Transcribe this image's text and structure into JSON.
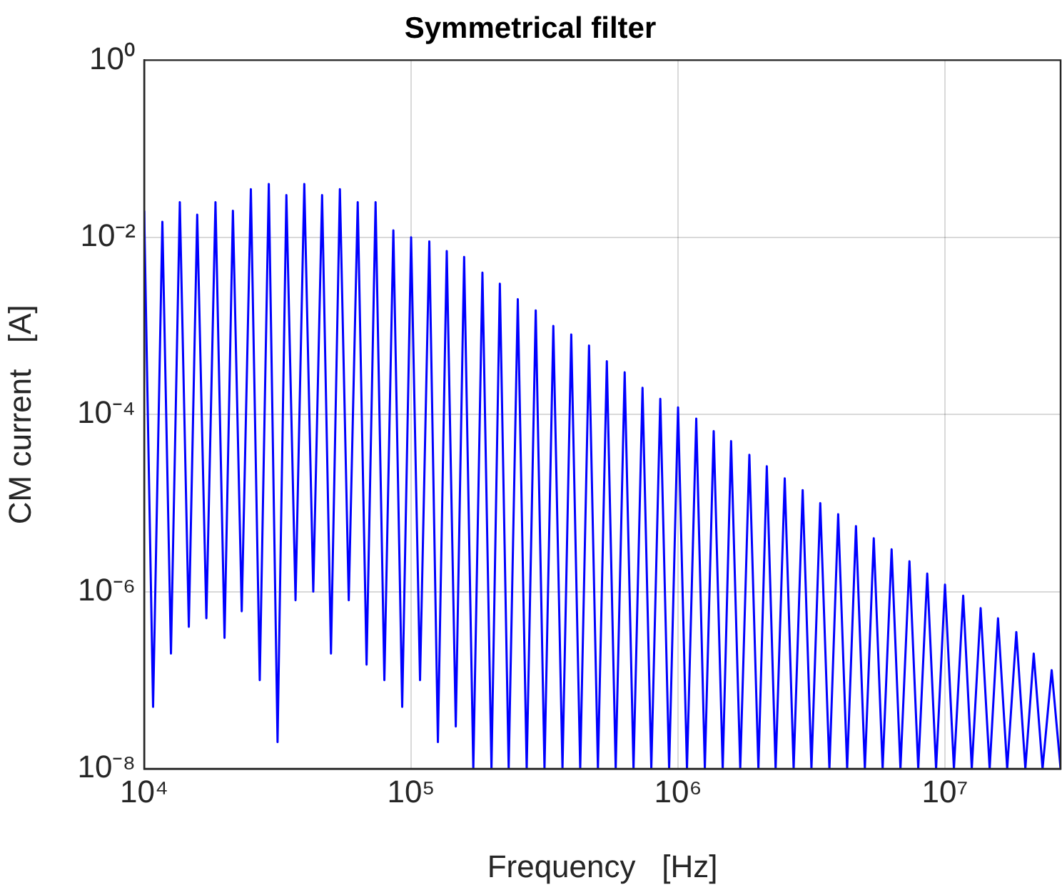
{
  "chart_data": {
    "type": "line",
    "title": "Symmetrical filter",
    "xlabel": "Frequency   [Hz]",
    "ylabel": "CM current   [A]",
    "log": "xy",
    "grid": true,
    "marker": "none",
    "xlim": [
      10000,
      27100000
    ],
    "ylim": [
      1e-08,
      1
    ],
    "xticks": [
      {
        "value": 10000,
        "label": "10⁴"
      },
      {
        "value": 100000,
        "label": "10⁵"
      },
      {
        "value": 1000000,
        "label": "10⁶"
      },
      {
        "value": 10000000,
        "label": "10⁷"
      }
    ],
    "yticks": [
      {
        "value": 1e-08,
        "label": "10⁻⁸"
      },
      {
        "value": 1e-06,
        "label": "10⁻⁶"
      },
      {
        "value": 0.0001,
        "label": "10⁻⁴"
      },
      {
        "value": 0.01,
        "label": "10⁻²"
      },
      {
        "value": 1,
        "label": "10⁰"
      }
    ],
    "x": [
      10000,
      10800,
      11700,
      12600,
      13600,
      14700,
      15800,
      17100,
      18500,
      20000,
      21500,
      23200,
      25100,
      27100,
      29300,
      31600,
      34100,
      36900,
      39800,
      43000,
      46400,
      50100,
      54100,
      58400,
      63100,
      68100,
      73600,
      79400,
      85800,
      92600,
      100000,
      108000,
      117000,
      126000,
      136000,
      147000,
      158000,
      171000,
      185000,
      200000,
      215000,
      232000,
      251000,
      271000,
      293000,
      316000,
      341000,
      369000,
      398000,
      430000,
      464000,
      501000,
      541000,
      584000,
      631000,
      681000,
      736000,
      794000,
      858000,
      926000,
      1000000,
      1080000,
      1170000,
      1260000,
      1360000,
      1470000,
      1580000,
      1710000,
      1850000,
      2000000,
      2150000,
      2320000,
      2510000,
      2710000,
      2930000,
      3160000,
      3410000,
      3690000,
      3980000,
      4300000,
      4640000,
      5010000,
      5410000,
      5840000,
      6310000,
      6810000,
      7360000,
      7940000,
      8580000,
      9260000,
      10000000,
      10800000,
      11700000,
      12600000,
      13600000,
      14700000,
      15800000,
      17100000,
      18500000,
      20000000,
      21500000,
      23200000,
      25100000,
      27100000
    ],
    "series": [
      {
        "color": "#0000ff",
        "values": [
          0.02,
          5e-08,
          0.015,
          2e-07,
          0.025,
          4e-07,
          0.018,
          5e-07,
          0.025,
          3e-07,
          0.02,
          6e-07,
          0.035,
          1e-07,
          0.04,
          2e-08,
          0.03,
          8e-07,
          0.04,
          1e-06,
          0.03,
          2e-07,
          0.035,
          8e-07,
          0.025,
          1.5e-07,
          0.025,
          1e-07,
          0.012,
          5e-08,
          0.01,
          1e-07,
          0.009,
          2e-08,
          0.007,
          3e-08,
          0.006,
          1e-08,
          0.004,
          1e-08,
          0.003,
          1e-08,
          0.002,
          1e-08,
          0.0015,
          1e-08,
          0.001,
          1e-08,
          0.0008,
          1e-08,
          0.0006,
          1e-08,
          0.0004,
          1e-08,
          0.0003,
          1e-08,
          0.0002,
          1e-08,
          0.00015,
          1e-08,
          0.00012,
          1e-08,
          9e-05,
          1e-08,
          6.5e-05,
          1e-08,
          5e-05,
          1e-08,
          3.5e-05,
          1e-08,
          2.6e-05,
          1e-08,
          1.9e-05,
          1e-08,
          1.4e-05,
          1e-08,
          1e-05,
          1e-08,
          7.5e-06,
          1e-08,
          5.5e-06,
          1e-08,
          4e-06,
          1e-08,
          3e-06,
          1e-08,
          2.2e-06,
          1e-08,
          1.6e-06,
          1e-08,
          1.2e-06,
          1e-08,
          9e-07,
          1e-08,
          6.5e-07,
          1e-08,
          5e-07,
          1e-08,
          3.5e-07,
          1e-08,
          2e-07,
          1e-08,
          1.3e-07,
          1e-08
        ]
      }
    ]
  }
}
